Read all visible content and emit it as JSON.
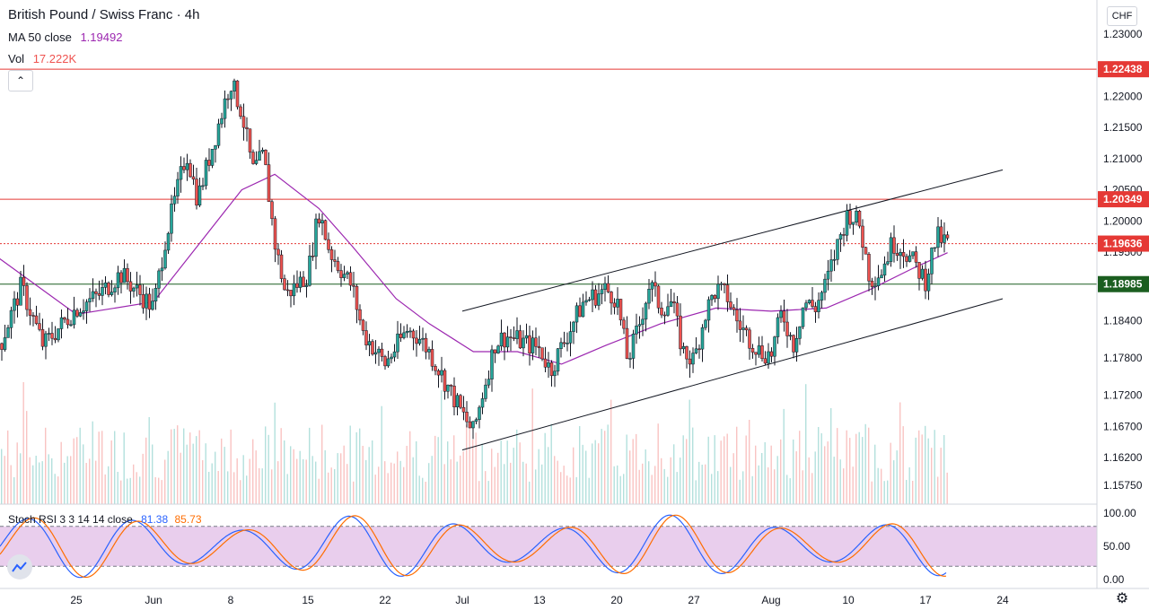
{
  "header": {
    "symbol_title": "British Pound / Swiss Franc · 4h",
    "ma_label": "MA 50 close",
    "ma_value": "1.19492",
    "vol_label": "Vol",
    "vol_value": "17.222K",
    "currency": "CHF",
    "collapse_icon": "chevron-up-icon"
  },
  "stoch_rsi": {
    "label": "Stoch RSI 3 3 14 14 close",
    "k_value": "81.38",
    "d_value": "85.73"
  },
  "colors": {
    "up": "#26a69a",
    "down": "#ef5350",
    "ma": "#9c27b0",
    "k_line": "#2962ff",
    "d_line": "#ff6d00",
    "rsi_band": "#e1bee7",
    "support": "#1b5e20",
    "resistance": "#e53935"
  },
  "chart_data": {
    "type": "candlestick",
    "title": "British Pound / Swiss Franc · 4h",
    "price_axis": {
      "ticks": [
        "1.23000",
        "1.22000",
        "1.21500",
        "1.21000",
        "1.20500",
        "1.20000",
        "1.19500",
        "1.18400",
        "1.17800",
        "1.17200",
        "1.16700",
        "1.16200",
        "1.15750"
      ],
      "ylim": [
        1.1545,
        1.2355
      ]
    },
    "time_axis": {
      "ticks": [
        "25",
        "Jun",
        "8",
        "15",
        "22",
        "Jul",
        "13",
        "20",
        "27",
        "Aug",
        "10",
        "17",
        "24"
      ]
    },
    "levels": [
      {
        "name": "resistance-high",
        "label": "1.22438",
        "value": 1.22438,
        "style": "solid",
        "color": "#e53935"
      },
      {
        "name": "resistance",
        "label": "1.20349",
        "value": 1.20349,
        "style": "solid",
        "color": "#e53935"
      },
      {
        "name": "last-price",
        "label": "1.19636",
        "value": 1.19636,
        "style": "dotted",
        "color": "#e53935"
      },
      {
        "name": "support",
        "label": "1.18985",
        "value": 1.18985,
        "style": "solid",
        "color": "#1b5e20"
      }
    ],
    "channel": {
      "upper": [
        {
          "date": "Jun 29",
          "price": 1.1855
        },
        {
          "date": "Aug 17",
          "price": 1.2082
        }
      ],
      "lower": [
        {
          "date": "Jun 29",
          "price": 1.1632
        },
        {
          "date": "Aug 17",
          "price": 1.1875
        }
      ]
    },
    "price_path": [
      {
        "date": "May 18",
        "price": 1.1795
      },
      {
        "date": "May 20",
        "price": 1.1895
      },
      {
        "date": "May 22",
        "price": 1.18
      },
      {
        "date": "May 25",
        "price": 1.186
      },
      {
        "date": "May 27",
        "price": 1.188
      },
      {
        "date": "May 29",
        "price": 1.1915
      },
      {
        "date": "Jun 1",
        "price": 1.186
      },
      {
        "date": "Jun 2",
        "price": 1.1965
      },
      {
        "date": "Jun 4",
        "price": 1.211
      },
      {
        "date": "Jun 5",
        "price": 1.2035
      },
      {
        "date": "Jun 8",
        "price": 1.2225
      },
      {
        "date": "Jun 9",
        "price": 1.2175
      },
      {
        "date": "Jun 10",
        "price": 1.208
      },
      {
        "date": "Jun 11",
        "price": 1.2105
      },
      {
        "date": "Jun 12",
        "price": 1.1965
      },
      {
        "date": "Jun 13",
        "price": 1.188
      },
      {
        "date": "Jun 15",
        "price": 1.1915
      },
      {
        "date": "Jun 16",
        "price": 1.2015
      },
      {
        "date": "Jun 17",
        "price": 1.195
      },
      {
        "date": "Jun 19",
        "price": 1.1895
      },
      {
        "date": "Jun 20",
        "price": 1.182
      },
      {
        "date": "Jun 22",
        "price": 1.177
      },
      {
        "date": "Jun 24",
        "price": 1.1825
      },
      {
        "date": "Jun 25",
        "price": 1.1815
      },
      {
        "date": "Jun 26",
        "price": 1.179
      },
      {
        "date": "Jun 29",
        "price": 1.169
      },
      {
        "date": "Jun 30",
        "price": 1.166
      },
      {
        "date": "Jul 1",
        "price": 1.1735
      },
      {
        "date": "Jul 2",
        "price": 1.1805
      },
      {
        "date": "Jul 3",
        "price": 1.1815
      },
      {
        "date": "Jul 6",
        "price": 1.1795
      },
      {
        "date": "Jul 7",
        "price": 1.176
      },
      {
        "date": "Jul 9",
        "price": 1.1835
      },
      {
        "date": "Jul 10",
        "price": 1.187
      },
      {
        "date": "Jul 12",
        "price": 1.189
      },
      {
        "date": "Jul 13",
        "price": 1.1875
      },
      {
        "date": "Jul 14",
        "price": 1.1775
      },
      {
        "date": "Jul 15",
        "price": 1.183
      },
      {
        "date": "Jul 16",
        "price": 1.19
      },
      {
        "date": "Jul 17",
        "price": 1.186
      },
      {
        "date": "Jul 18",
        "price": 1.187
      },
      {
        "date": "Jul 19",
        "price": 1.179
      },
      {
        "date": "Jul 20",
        "price": 1.1775
      },
      {
        "date": "Jul 21",
        "price": 1.185
      },
      {
        "date": "Jul 22",
        "price": 1.189
      },
      {
        "date": "Jul 23",
        "price": 1.188
      },
      {
        "date": "Jul 24",
        "price": 1.1835
      },
      {
        "date": "Jul 26",
        "price": 1.179
      },
      {
        "date": "Jul 27",
        "price": 1.1785
      },
      {
        "date": "Jul 28",
        "price": 1.1855
      },
      {
        "date": "Jul 29",
        "price": 1.18
      },
      {
        "date": "Jul 30",
        "price": 1.187
      },
      {
        "date": "Jul 31",
        "price": 1.186
      },
      {
        "date": "Aug 1",
        "price": 1.19
      },
      {
        "date": "Aug 2",
        "price": 1.196
      },
      {
        "date": "Aug 3",
        "price": 1.2015
      },
      {
        "date": "Aug 4",
        "price": 1.1995
      },
      {
        "date": "Aug 5",
        "price": 1.1905
      },
      {
        "date": "Aug 6",
        "price": 1.192
      },
      {
        "date": "Aug 7",
        "price": 1.1965
      },
      {
        "date": "Aug 8",
        "price": 1.1955
      },
      {
        "date": "Aug 10",
        "price": 1.1905
      },
      {
        "date": "Aug 11",
        "price": 1.1975
      },
      {
        "date": "Aug 12",
        "price": 1.1964
      }
    ],
    "moving_average": [
      {
        "date": "May 18",
        "price": 1.194
      },
      {
        "date": "May 25",
        "price": 1.185
      },
      {
        "date": "Jun 1",
        "price": 1.187
      },
      {
        "date": "Jun 5",
        "price": 1.196
      },
      {
        "date": "Jun 9",
        "price": 1.205
      },
      {
        "date": "Jun 12",
        "price": 1.2075
      },
      {
        "date": "Jun 16",
        "price": 1.202
      },
      {
        "date": "Jun 19",
        "price": 1.196
      },
      {
        "date": "Jun 23",
        "price": 1.1875
      },
      {
        "date": "Jun 26",
        "price": 1.1835
      },
      {
        "date": "Jun 30",
        "price": 1.179
      },
      {
        "date": "Jul 4",
        "price": 1.179
      },
      {
        "date": "Jul 8",
        "price": 1.177
      },
      {
        "date": "Jul 12",
        "price": 1.18
      },
      {
        "date": "Jul 17",
        "price": 1.1835
      },
      {
        "date": "Jul 22",
        "price": 1.186
      },
      {
        "date": "Jul 27",
        "price": 1.1855
      },
      {
        "date": "Aug 1",
        "price": 1.186
      },
      {
        "date": "Aug 5",
        "price": 1.189
      },
      {
        "date": "Aug 9",
        "price": 1.1925
      },
      {
        "date": "Aug 12",
        "price": 1.1949
      }
    ],
    "stoch_rsi_axis": {
      "ticks": [
        "100.00",
        "50.00",
        "0.00"
      ],
      "ylim": [
        0,
        100
      ],
      "bands": [
        20,
        80
      ]
    },
    "legend": [
      "MA 50 close",
      "Vol",
      "Stoch RSI 3 3 14 14 close"
    ]
  }
}
